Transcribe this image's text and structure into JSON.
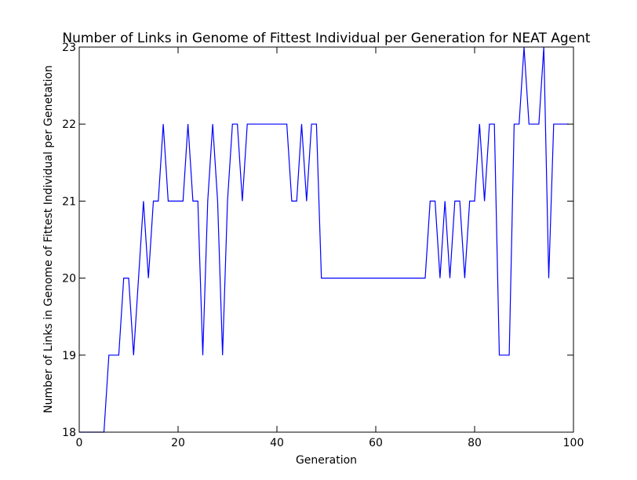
{
  "chart_data": {
    "type": "line",
    "title": "Number of Links in Genome of Fittest Individual per Generation for NEAT Agent",
    "xlabel": "Generation",
    "ylabel": "Number of Links in Genome of Fittest Individual per Genetation",
    "xlim": [
      0,
      100
    ],
    "ylim": [
      18,
      23
    ],
    "xticks": [
      "0",
      "20",
      "40",
      "60",
      "80",
      "100"
    ],
    "yticks": [
      "18",
      "19",
      "20",
      "21",
      "22",
      "23"
    ],
    "grid": false,
    "legend": "none",
    "line_color": "#0000ff",
    "series": [
      {
        "x": [
          0,
          1,
          2,
          3,
          4,
          5,
          6,
          7,
          8,
          9,
          10,
          11,
          12,
          13,
          14,
          15,
          16,
          17,
          18,
          19,
          20,
          21,
          22,
          23,
          24,
          25,
          26,
          27,
          28,
          29,
          30,
          31,
          32,
          33,
          34,
          35,
          36,
          37,
          38,
          39,
          40,
          41,
          42,
          43,
          44,
          45,
          46,
          47,
          48,
          49,
          50,
          51,
          52,
          53,
          54,
          55,
          56,
          57,
          58,
          59,
          60,
          61,
          62,
          63,
          64,
          65,
          66,
          67,
          68,
          69,
          70,
          71,
          72,
          73,
          74,
          75,
          76,
          77,
          78,
          79,
          80,
          81,
          82,
          83,
          84,
          85,
          86,
          87,
          88,
          89,
          90,
          91,
          92,
          93,
          94,
          95,
          96,
          97,
          98,
          99
        ],
        "values": [
          18,
          18,
          18,
          18,
          18,
          18,
          19,
          19,
          19,
          20,
          20,
          19,
          20,
          21,
          20,
          21,
          21,
          22,
          21,
          21,
          21,
          21,
          22,
          21,
          21,
          19,
          21,
          22,
          21,
          19,
          21,
          22,
          22,
          21,
          22,
          22,
          22,
          22,
          22,
          22,
          22,
          22,
          22,
          21,
          21,
          22,
          21,
          22,
          22,
          20,
          20,
          20,
          20,
          20,
          20,
          20,
          20,
          20,
          20,
          20,
          20,
          20,
          20,
          20,
          20,
          20,
          20,
          20,
          20,
          20,
          20,
          21,
          21,
          20,
          21,
          20,
          21,
          21,
          20,
          21,
          21,
          22,
          21,
          22,
          22,
          19,
          19,
          19,
          22,
          22,
          23,
          22,
          22,
          22,
          23,
          20,
          22,
          22,
          22,
          22
        ]
      }
    ]
  }
}
